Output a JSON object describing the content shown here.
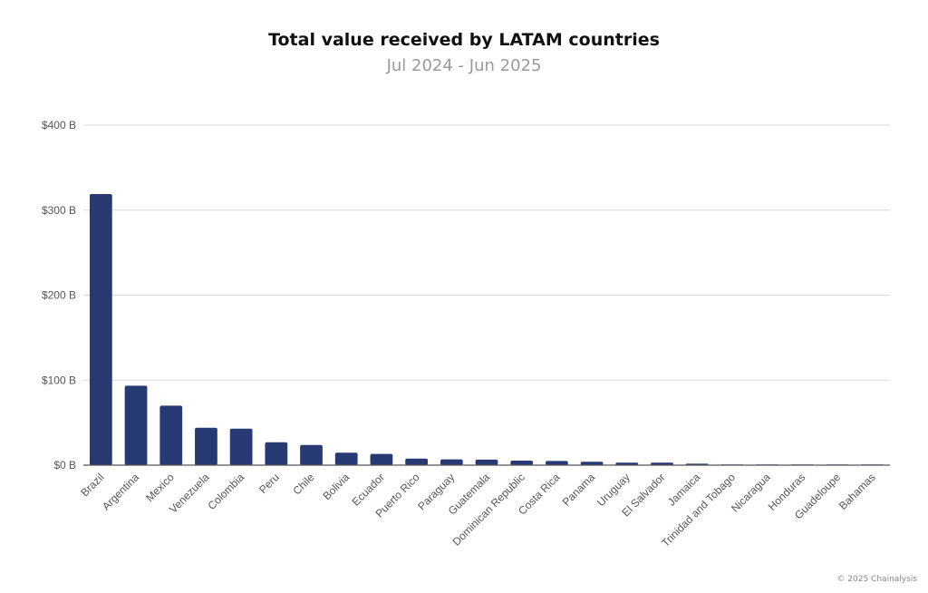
{
  "chart_data": {
    "type": "bar",
    "title": "Total value received by LATAM countries",
    "subtitle": "Jul 2024 - Jun 2025",
    "xlabel": "",
    "ylabel": "",
    "ylim": [
      0,
      400
    ],
    "yticks": [
      0,
      100,
      200,
      300,
      400
    ],
    "ytick_labels": [
      "$0 B",
      "$100 B",
      "$200 B",
      "$300 B",
      "$400 B"
    ],
    "grid": true,
    "bar_color": "#283a73",
    "categories": [
      "Brazil",
      "Argentina",
      "Mexico",
      "Venezuela",
      "Colombia",
      "Peru",
      "Chile",
      "Bolivia",
      "Ecuador",
      "Puerto Rico",
      "Paraguay",
      "Guatemala",
      "Dominican Republic",
      "Costa Rica",
      "Panama",
      "Uruguay",
      "El Salvador",
      "Jamaica",
      "Trinidad and Tobago",
      "Nicaragua",
      "Honduras",
      "Guadeloupe",
      "Bahamas"
    ],
    "values": [
      319,
      93.5,
      70,
      44,
      43,
      27,
      23.7,
      14.7,
      13.2,
      7.8,
      6.8,
      6.6,
      5.3,
      5,
      4,
      2.9,
      2.9,
      1.8,
      0.3,
      0.3,
      0.2,
      0.2,
      0.1
    ]
  },
  "credit": "© 2025 Chainalysis"
}
